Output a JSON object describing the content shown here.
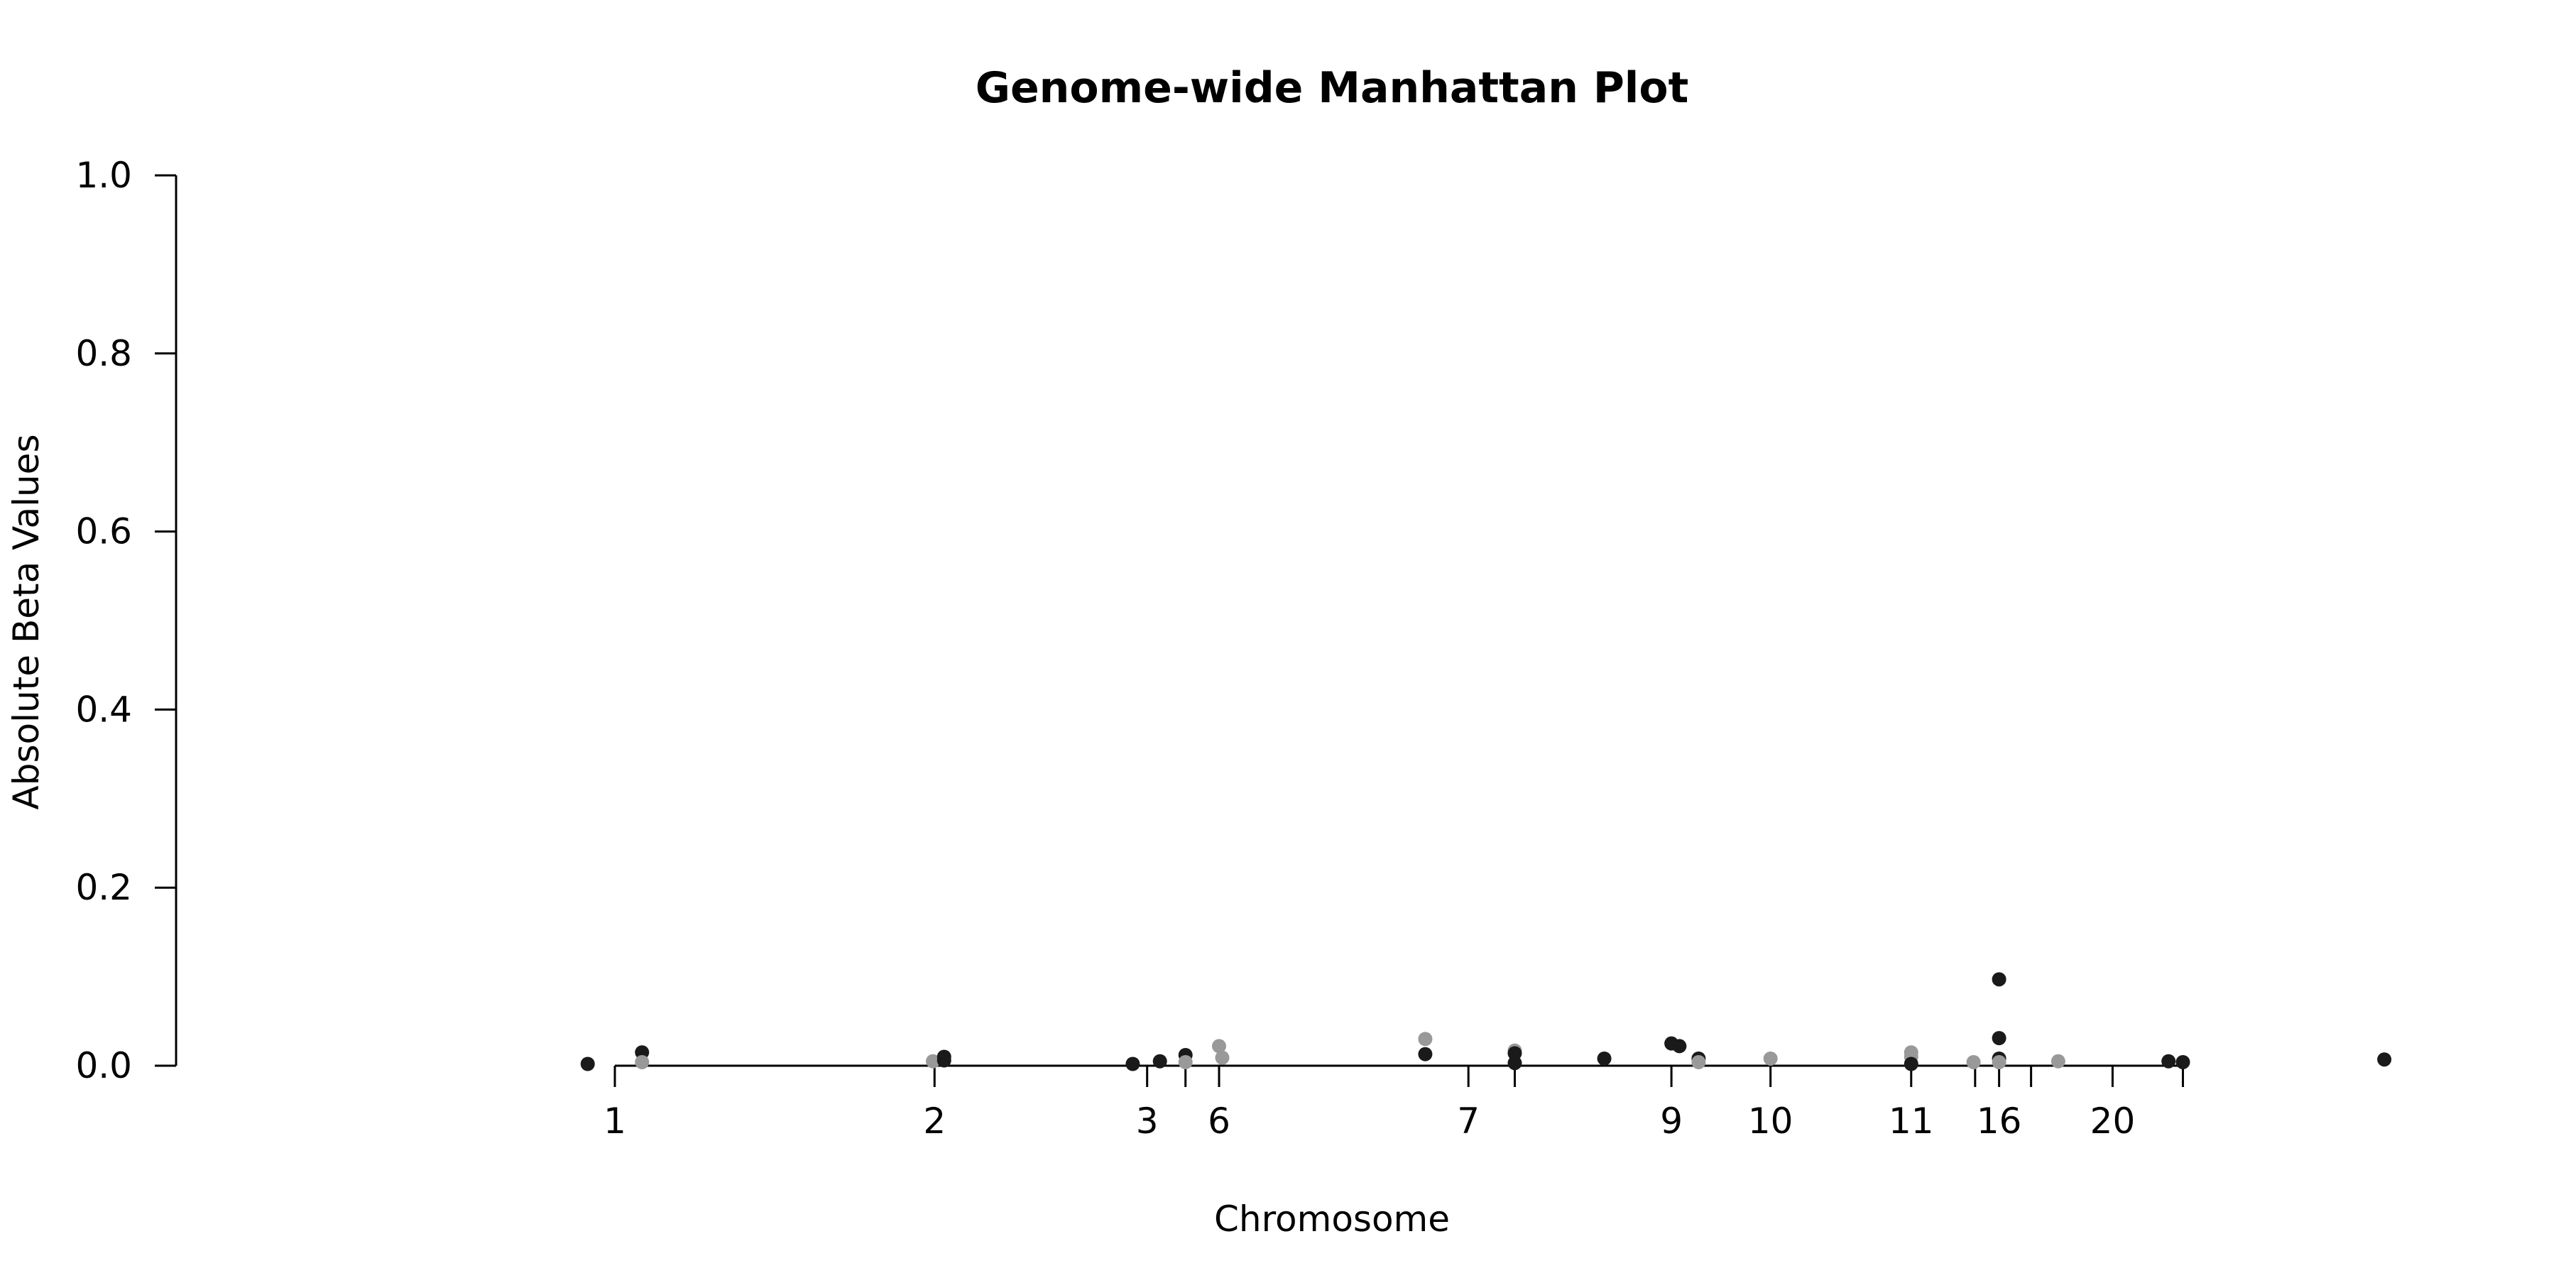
{
  "chart_data": {
    "type": "scatter",
    "title": "Genome-wide Manhattan Plot",
    "xlabel": "Chromosome",
    "ylabel": "Absolute Beta Values",
    "ylim": [
      0,
      1
    ],
    "y_ticks": [
      "0.0",
      "0.2",
      "0.4",
      "0.6",
      "0.8",
      "1.0"
    ],
    "x_ticks": [
      {
        "label": "1",
        "x": 0
      },
      {
        "label": "2",
        "x": 200
      },
      {
        "label": "3",
        "x": 333
      },
      {
        "label": "",
        "x": 357
      },
      {
        "label": "6",
        "x": 378
      },
      {
        "label": "7",
        "x": 534
      },
      {
        "label": "",
        "x": 563
      },
      {
        "label": "9",
        "x": 661
      },
      {
        "label": "10",
        "x": 723
      },
      {
        "label": "11",
        "x": 811
      },
      {
        "label": "",
        "x": 851
      },
      {
        "label": "16",
        "x": 866
      },
      {
        "label": "",
        "x": 886
      },
      {
        "label": "20",
        "x": 937
      },
      {
        "label": "",
        "x": 981
      }
    ],
    "xlim": [
      -18,
      1107
    ],
    "grid": false,
    "colors": {
      "dark": "#1a1a1a",
      "light": "#999999"
    },
    "points": [
      {
        "x": -17,
        "y": 0.002,
        "c": "dark"
      },
      {
        "x": 17,
        "y": 0.015,
        "c": "dark"
      },
      {
        "x": 17,
        "y": 0.004,
        "c": "light"
      },
      {
        "x": 199,
        "y": 0.005,
        "c": "light"
      },
      {
        "x": 206,
        "y": 0.01,
        "c": "dark"
      },
      {
        "x": 206,
        "y": 0.006,
        "c": "dark"
      },
      {
        "x": 324,
        "y": 0.002,
        "c": "dark"
      },
      {
        "x": 341,
        "y": 0.005,
        "c": "dark"
      },
      {
        "x": 357,
        "y": 0.012,
        "c": "dark"
      },
      {
        "x": 357,
        "y": 0.004,
        "c": "light"
      },
      {
        "x": 378,
        "y": 0.022,
        "c": "light"
      },
      {
        "x": 380,
        "y": 0.009,
        "c": "light"
      },
      {
        "x": 507,
        "y": 0.03,
        "c": "light"
      },
      {
        "x": 507,
        "y": 0.013,
        "c": "dark"
      },
      {
        "x": 563,
        "y": 0.017,
        "c": "light"
      },
      {
        "x": 563,
        "y": 0.014,
        "c": "dark"
      },
      {
        "x": 563,
        "y": 0.003,
        "c": "dark"
      },
      {
        "x": 619,
        "y": 0.008,
        "c": "dark"
      },
      {
        "x": 661,
        "y": 0.025,
        "c": "dark"
      },
      {
        "x": 666,
        "y": 0.022,
        "c": "dark"
      },
      {
        "x": 678,
        "y": 0.008,
        "c": "dark"
      },
      {
        "x": 678,
        "y": 0.004,
        "c": "light"
      },
      {
        "x": 723,
        "y": 0.008,
        "c": "light"
      },
      {
        "x": 811,
        "y": 0.015,
        "c": "light"
      },
      {
        "x": 811,
        "y": 0.01,
        "c": "light"
      },
      {
        "x": 811,
        "y": 0.002,
        "c": "dark"
      },
      {
        "x": 850,
        "y": 0.004,
        "c": "light"
      },
      {
        "x": 866,
        "y": 0.097,
        "c": "dark"
      },
      {
        "x": 866,
        "y": 0.031,
        "c": "dark"
      },
      {
        "x": 866,
        "y": 0.008,
        "c": "dark"
      },
      {
        "x": 866,
        "y": 0.004,
        "c": "light"
      },
      {
        "x": 903,
        "y": 0.005,
        "c": "light"
      },
      {
        "x": 972,
        "y": 0.005,
        "c": "dark"
      },
      {
        "x": 981,
        "y": 0.004,
        "c": "dark"
      },
      {
        "x": 1107,
        "y": 0.007,
        "c": "dark"
      }
    ]
  }
}
